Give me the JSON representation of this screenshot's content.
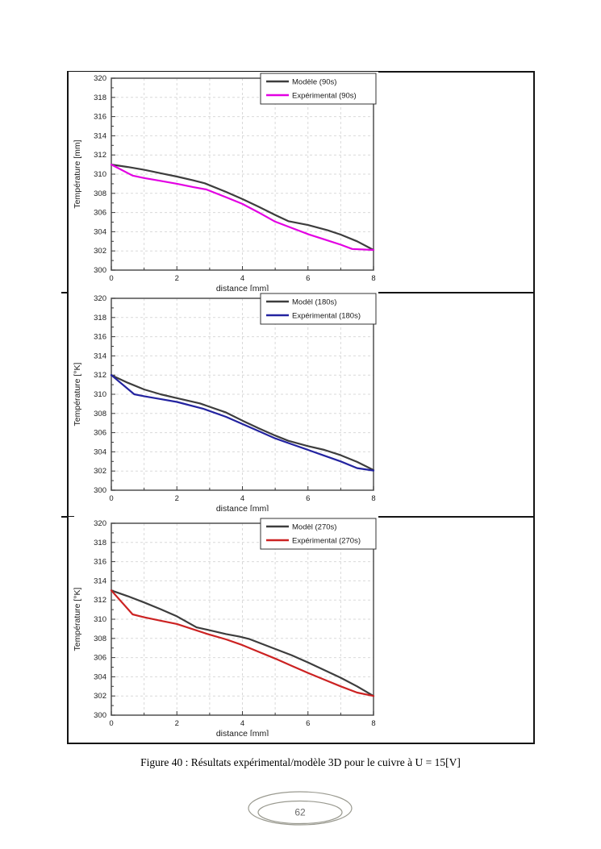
{
  "page": {
    "caption": "Figure 40 : Résultats expérimental/modèle 3D pour le cuivre à U = 15[V]",
    "page_number": "62"
  },
  "colors": {
    "model_line": "#3d3d3d",
    "exp_90": "#e300e3",
    "exp_180": "#2323a0",
    "exp_270": "#cc2222",
    "grid": "#d9d9d9",
    "frame": "#5a5a5a",
    "tick": "#3c3c3c",
    "text": "#1a1a1a",
    "legend_border": "#333333",
    "ellipse_stroke": "#9a9a90",
    "page_number_text": "#6b6b6b"
  },
  "chart_data": [
    {
      "type": "line",
      "title": "",
      "xlabel": "distance [mm]",
      "ylabel": "Température [mm]",
      "xlim": [
        0,
        8
      ],
      "ylim": [
        300,
        320
      ],
      "x_ticks": [
        0,
        2,
        4,
        6,
        8
      ],
      "x_minor_ticks": [
        1,
        3,
        5,
        7
      ],
      "y_ticks": [
        300,
        302,
        304,
        306,
        308,
        310,
        312,
        314,
        316,
        318,
        320
      ],
      "y_minor_ticks": [
        301,
        303,
        305,
        307,
        309,
        311,
        313,
        315,
        317,
        319
      ],
      "grid": true,
      "legend_position": "top-right",
      "series": [
        {
          "name": "Modèle (90s)",
          "color_key": "model_line",
          "points": [
            [
              0,
              311
            ],
            [
              0.5,
              310.75
            ],
            [
              1,
              310.45
            ],
            [
              1.5,
              310.1
            ],
            [
              2,
              309.75
            ],
            [
              2.5,
              309.35
            ],
            [
              2.85,
              309.05
            ],
            [
              3.5,
              308.15
            ],
            [
              4,
              307.4
            ],
            [
              4.5,
              306.6
            ],
            [
              5,
              305.75
            ],
            [
              5.4,
              305.1
            ],
            [
              6,
              304.7
            ],
            [
              6.6,
              304.15
            ],
            [
              7,
              303.7
            ],
            [
              7.5,
              303.0
            ],
            [
              8,
              302.1
            ]
          ]
        },
        {
          "name": "Expérimental (90s)",
          "color_key": "exp_90",
          "points": [
            [
              0,
              311
            ],
            [
              0.65,
              309.85
            ],
            [
              1,
              309.6
            ],
            [
              1.5,
              309.3
            ],
            [
              2,
              309.0
            ],
            [
              2.5,
              308.65
            ],
            [
              2.9,
              308.4
            ],
            [
              3.5,
              307.6
            ],
            [
              4,
              306.9
            ],
            [
              4.5,
              306.0
            ],
            [
              5,
              305.05
            ],
            [
              5.5,
              304.4
            ],
            [
              6,
              303.75
            ],
            [
              6.5,
              303.2
            ],
            [
              7,
              302.65
            ],
            [
              7.35,
              302.2
            ],
            [
              8,
              302.1
            ]
          ]
        }
      ]
    },
    {
      "type": "line",
      "title": "",
      "xlabel": "distance [mm]",
      "ylabel": "Température [°K]",
      "xlim": [
        0,
        8
      ],
      "ylim": [
        300,
        320
      ],
      "x_ticks": [
        0,
        2,
        4,
        6,
        8
      ],
      "x_minor_ticks": [
        1,
        3,
        5,
        7
      ],
      "y_ticks": [
        300,
        302,
        304,
        306,
        308,
        310,
        312,
        314,
        316,
        318,
        320
      ],
      "y_minor_ticks": [
        301,
        303,
        305,
        307,
        309,
        311,
        313,
        315,
        317,
        319
      ],
      "grid": true,
      "legend_position": "top-right",
      "series": [
        {
          "name": "Modèl (180s)",
          "color_key": "model_line",
          "points": [
            [
              0,
              312
            ],
            [
              0.5,
              311.2
            ],
            [
              1,
              310.5
            ],
            [
              1.5,
              310.0
            ],
            [
              2,
              309.6
            ],
            [
              2.7,
              309.05
            ],
            [
              3.5,
              308.1
            ],
            [
              4,
              307.25
            ],
            [
              4.5,
              306.45
            ],
            [
              5,
              305.7
            ],
            [
              5.4,
              305.15
            ],
            [
              6,
              304.6
            ],
            [
              6.5,
              304.2
            ],
            [
              7,
              303.65
            ],
            [
              7.5,
              302.95
            ],
            [
              8,
              302.1
            ]
          ]
        },
        {
          "name": "Expérimental (180s)",
          "color_key": "exp_180",
          "points": [
            [
              0,
              312
            ],
            [
              0.7,
              310.0
            ],
            [
              1,
              309.8
            ],
            [
              1.5,
              309.5
            ],
            [
              2,
              309.2
            ],
            [
              2.8,
              308.5
            ],
            [
              3.5,
              307.65
            ],
            [
              4,
              306.9
            ],
            [
              4.5,
              306.15
            ],
            [
              5,
              305.4
            ],
            [
              5.5,
              304.8
            ],
            [
              6,
              304.2
            ],
            [
              6.5,
              303.6
            ],
            [
              7,
              303.0
            ],
            [
              7.5,
              302.3
            ],
            [
              8,
              302.05
            ]
          ]
        }
      ]
    },
    {
      "type": "line",
      "title": "",
      "xlabel": "distance [mm]",
      "ylabel": "Température [°K]",
      "xlim": [
        0,
        8
      ],
      "ylim": [
        300,
        320
      ],
      "x_ticks": [
        0,
        2,
        4,
        6,
        8
      ],
      "x_minor_ticks": [
        1,
        3,
        5,
        7
      ],
      "y_ticks": [
        300,
        302,
        304,
        306,
        308,
        310,
        312,
        314,
        316,
        318,
        320
      ],
      "y_minor_ticks": [
        301,
        303,
        305,
        307,
        309,
        311,
        313,
        315,
        317,
        319
      ],
      "grid": true,
      "legend_position": "top-right",
      "series": [
        {
          "name": "Modèl (270s)",
          "color_key": "model_line",
          "points": [
            [
              0,
              313
            ],
            [
              0.5,
              312.4
            ],
            [
              1,
              311.75
            ],
            [
              1.5,
              311.05
            ],
            [
              2,
              310.3
            ],
            [
              2.6,
              309.15
            ],
            [
              3,
              308.85
            ],
            [
              3.5,
              308.45
            ],
            [
              3.9,
              308.2
            ],
            [
              4.2,
              307.95
            ],
            [
              5,
              306.9
            ],
            [
              5.5,
              306.25
            ],
            [
              6,
              305.5
            ],
            [
              6.5,
              304.7
            ],
            [
              7,
              303.9
            ],
            [
              7.5,
              303.0
            ],
            [
              8,
              302.0
            ]
          ]
        },
        {
          "name": "Expérimental (270s)",
          "color_key": "exp_270",
          "points": [
            [
              0,
              313
            ],
            [
              0.65,
              310.5
            ],
            [
              1,
              310.2
            ],
            [
              1.5,
              309.85
            ],
            [
              2,
              309.5
            ],
            [
              2.9,
              308.5
            ],
            [
              3.5,
              307.9
            ],
            [
              4,
              307.3
            ],
            [
              4.5,
              306.6
            ],
            [
              5,
              305.9
            ],
            [
              5.5,
              305.15
            ],
            [
              6,
              304.4
            ],
            [
              6.5,
              303.7
            ],
            [
              7,
              303.0
            ],
            [
              7.5,
              302.35
            ],
            [
              8,
              302.0
            ]
          ]
        }
      ]
    }
  ]
}
